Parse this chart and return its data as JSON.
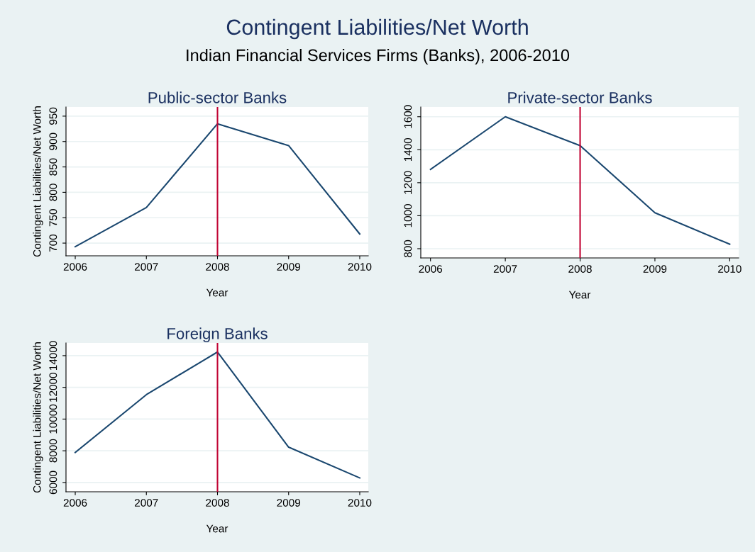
{
  "chart_data": [
    {
      "type": "line",
      "title": "Public-sector Banks",
      "xlabel": "Year",
      "ylabel": "Contingent Liabilities/Net Worth",
      "x": [
        2006,
        2007,
        2008,
        2009,
        2010
      ],
      "series": [
        {
          "color": "#1a476f",
          "values": [
            693,
            770,
            935,
            892,
            718
          ]
        }
      ],
      "xlim": [
        2005.87,
        2010.12
      ],
      "xticks": [
        2006,
        2007,
        2008,
        2009,
        2010
      ],
      "ylim": [
        675,
        968
      ],
      "yticks": [
        700,
        750,
        800,
        850,
        900,
        950
      ],
      "grid": "y",
      "ref_lines": [
        {
          "axis": "x",
          "value": 2008,
          "color": "#c10534"
        }
      ],
      "annotations": [
        "Contingent Liabilities/Net Worth",
        "Indian Financial Services Firms (Banks), 2006-2010"
      ]
    },
    {
      "type": "line",
      "title": "Private-sector Banks",
      "xlabel": "Year",
      "x": [
        2006,
        2007,
        2008,
        2009,
        2010
      ],
      "series": [
        {
          "color": "#1a476f",
          "values": [
            1281,
            1600,
            1425,
            1018,
            827
          ]
        }
      ],
      "xlim": [
        2005.87,
        2010.12
      ],
      "xticks": [
        2006,
        2007,
        2008,
        2009,
        2010
      ],
      "ylim": [
        744,
        1659
      ],
      "yticks": [
        800,
        1000,
        1200,
        1400,
        1600
      ],
      "grid": "y",
      "ref_lines": [
        {
          "axis": "x",
          "value": 2008,
          "color": "#c10534"
        }
      ]
    },
    {
      "type": "line",
      "title": "Foreign Banks",
      "xlabel": "Year",
      "ylabel": "Contingent Liabilities/Net Worth",
      "x": [
        2006,
        2007,
        2008,
        2009,
        2010
      ],
      "series": [
        {
          "color": "#1a476f",
          "values": [
            7890,
            11540,
            14230,
            8230,
            6290
          ]
        }
      ],
      "xlim": [
        2005.87,
        2010.12
      ],
      "xticks": [
        2006,
        2007,
        2008,
        2009,
        2010
      ],
      "ylim": [
        5415,
        14800
      ],
      "yticks": [
        6000,
        8000,
        10000,
        12000,
        14000
      ],
      "grid": "y",
      "ref_lines": [
        {
          "axis": "x",
          "value": 2008,
          "color": "#c10534"
        }
      ]
    }
  ]
}
